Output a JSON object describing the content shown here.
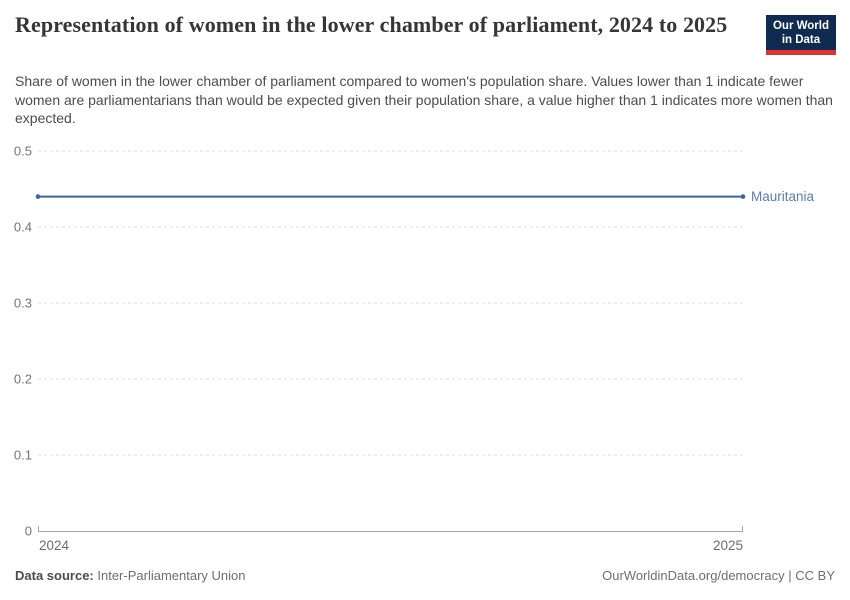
{
  "header": {
    "title": "Representation of women in the lower chamber of parliament, 2024 to 2025",
    "subtitle": "Share of women in the lower chamber of parliament compared to women's population share. Values lower than 1 indicate fewer women are parliamentarians than would be expected given their population share, a value higher than 1 indicates more women than expected."
  },
  "logo": {
    "line1": "Our World",
    "line2": "in Data",
    "background_color": "#102b50",
    "accent_color": "#d8352f"
  },
  "chart_data": {
    "type": "line",
    "title": "Representation of women in the lower chamber of parliament, 2024 to 2025",
    "x": [
      2024,
      2025
    ],
    "xtick_labels": [
      "2024",
      "2025"
    ],
    "series": [
      {
        "name": "Mauritania",
        "values": [
          0.44,
          0.44
        ],
        "color": "#3d6399",
        "label_color": "#5d7cae"
      }
    ],
    "xlabel": "",
    "ylabel": "",
    "xlim": [
      2024,
      2025
    ],
    "ylim": [
      0,
      0.5
    ],
    "yticks": [
      0,
      0.1,
      0.2,
      0.3,
      0.4,
      0.5
    ],
    "grid": "horizontal dashed",
    "grid_color": "#dcdcdc",
    "axis_color": "#a8a8a8",
    "legend_position": "end-of-line label"
  },
  "footer": {
    "datasource_label": "Data source:",
    "datasource_value": "Inter-Parliamentary Union",
    "right_text": "OurWorldinData.org/democracy | CC BY"
  }
}
